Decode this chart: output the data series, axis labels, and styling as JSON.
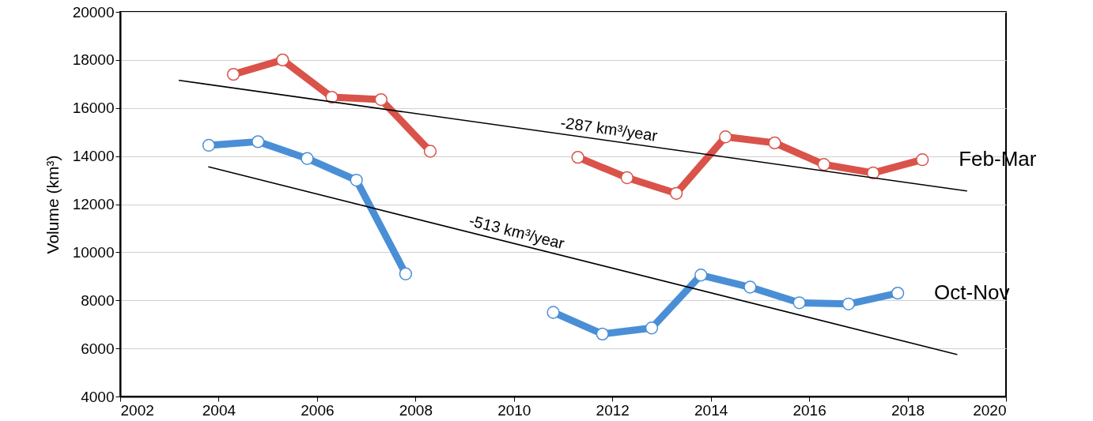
{
  "chart_data": {
    "type": "line",
    "ylabel": "Volume (km³)",
    "xlim": [
      2002,
      2020
    ],
    "xticks": [
      2002,
      2004,
      2006,
      2008,
      2010,
      2012,
      2014,
      2016,
      2018,
      2020
    ],
    "ylim": [
      4000,
      20000
    ],
    "yticks": [
      4000,
      6000,
      8000,
      10000,
      12000,
      14000,
      16000,
      18000,
      20000
    ],
    "grid": "y",
    "marker": "circle",
    "series": [
      {
        "name": "Feb-Mar",
        "color": "#d9534a",
        "x": [
          2004.3,
          2005.3,
          2006.3,
          2007.3,
          2008.3,
          2009.8,
          2011.3,
          2012.3,
          2013.3,
          2014.3,
          2015.3,
          2016.3,
          2017.3,
          2018.3
        ],
        "values": [
          17400,
          18000,
          16450,
          16350,
          14200,
          null,
          13950,
          13100,
          12450,
          14800,
          14550,
          13650,
          13300,
          13850
        ]
      },
      {
        "name": "Oct-Nov",
        "color": "#4a8fd6",
        "x": [
          2003.8,
          2004.8,
          2005.8,
          2006.8,
          2007.8,
          2009.3,
          2010.8,
          2011.8,
          2012.8,
          2013.8,
          2014.8,
          2015.8,
          2016.8,
          2017.8
        ],
        "values": [
          14450,
          14600,
          13900,
          13000,
          9100,
          null,
          7500,
          6600,
          6850,
          9050,
          8550,
          7900,
          7850,
          8300
        ]
      },
      {
        "type": "line",
        "color": "#000000",
        "marker": "none",
        "x": [
          2003.2,
          2019.2
        ],
        "values": [
          17150,
          12550
        ]
      },
      {
        "type": "line",
        "color": "#000000",
        "marker": "none",
        "x": [
          2003.8,
          2019.0
        ],
        "values": [
          13550,
          5750
        ]
      }
    ],
    "annotations": [
      {
        "text": "-287 km³/year",
        "x": 2011.9,
        "y": 14640
      },
      {
        "text": "-513 km³/year",
        "x": 2010.0,
        "y": 10370
      }
    ]
  }
}
